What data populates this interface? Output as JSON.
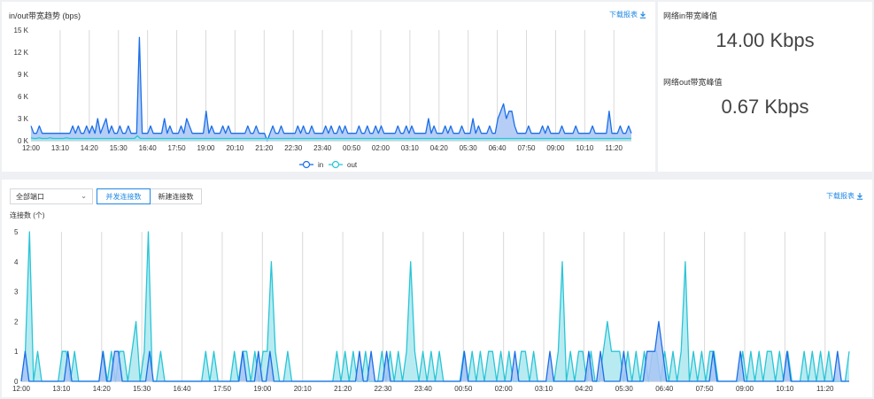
{
  "bandwidth_panel": {
    "title": "in/out带宽趋势 (bps)",
    "download_label": "下载报表",
    "legend": [
      {
        "name": "in",
        "color": "#1a6ee8"
      },
      {
        "name": "out",
        "color": "#29c5d6"
      }
    ]
  },
  "peak_panel": {
    "in_label": "网络in带宽峰值",
    "in_value": "14.00 Kbps",
    "out_label": "网络out带宽峰值",
    "out_value": "0.67 Kbps"
  },
  "connections_panel": {
    "port_select": {
      "value": "全部端口"
    },
    "tabs": [
      {
        "label": "并发连接数",
        "active": true
      },
      {
        "label": "新建连接数",
        "active": false
      }
    ],
    "download_label": "下载报表",
    "y_title": "连接数 (个)"
  },
  "colors": {
    "accent": "#1e88e5",
    "in_series": "#1a6ee8",
    "in_fill": "#a9c6f5",
    "out_series": "#29c5d6",
    "out_fill": "#a6e6ee",
    "grid": "#d9d9d9"
  },
  "chart_data": [
    {
      "type": "area",
      "title": "in/out带宽趋势 (bps)",
      "x_ticks": [
        "12:00",
        "13:10",
        "14:20",
        "15:30",
        "16:40",
        "17:50",
        "19:00",
        "20:10",
        "21:20",
        "22:30",
        "23:40",
        "00:50",
        "02:00",
        "03:10",
        "04:20",
        "05:30",
        "06:40",
        "07:50",
        "09:00",
        "10:10",
        "11:20"
      ],
      "y_ticks": [
        "0 K",
        "3 K",
        "6 K",
        "9 K",
        "12 K",
        "15 K"
      ],
      "ylim": [
        0,
        15
      ],
      "yunit": "K",
      "legend_position": "bottom",
      "grid": true,
      "series": [
        {
          "name": "in",
          "values": [
            2,
            1,
            1,
            2,
            1,
            1,
            1,
            1,
            1,
            1,
            1,
            1,
            1,
            1,
            1,
            2,
            1,
            2,
            1,
            1,
            2,
            1,
            2,
            1,
            3,
            1,
            2,
            3,
            1,
            2,
            1,
            1,
            2,
            1,
            1,
            2,
            1,
            1,
            1,
            14,
            1,
            1,
            1,
            2,
            1,
            1,
            1,
            1,
            3,
            1,
            2,
            1,
            1,
            1,
            2,
            1,
            3,
            2,
            1,
            1,
            1,
            1,
            1,
            4,
            1,
            2,
            1,
            1,
            1,
            2,
            1,
            2,
            1,
            1,
            1,
            1,
            1,
            1,
            2,
            1,
            1,
            2,
            1,
            1,
            1,
            0,
            1,
            2,
            1,
            1,
            2,
            1,
            1,
            1,
            1,
            1,
            2,
            1,
            2,
            1,
            1,
            2,
            1,
            1,
            1,
            1,
            2,
            1,
            2,
            1,
            1,
            2,
            1,
            2,
            1,
            1,
            1,
            1,
            2,
            1,
            1,
            2,
            1,
            1,
            2,
            1,
            2,
            1,
            1,
            1,
            1,
            1,
            2,
            1,
            1,
            2,
            1,
            2,
            1,
            1,
            1,
            1,
            1,
            3,
            1,
            2,
            1,
            1,
            1,
            2,
            1,
            2,
            1,
            1,
            1,
            2,
            1,
            1,
            1,
            3,
            1,
            2,
            1,
            1,
            1,
            2,
            1,
            1,
            3,
            4,
            5,
            3,
            4,
            4,
            2,
            1,
            1,
            1,
            1,
            2,
            1,
            1,
            1,
            1,
            2,
            1,
            2,
            1,
            1,
            1,
            1,
            2,
            1,
            1,
            1,
            1,
            2,
            1,
            1,
            1,
            1,
            1,
            2,
            1,
            1,
            1,
            1,
            1,
            4,
            1,
            1,
            1,
            2,
            1,
            1,
            2,
            1
          ]
        },
        {
          "name": "out",
          "values": [
            0.4,
            0.3,
            0.3,
            0.4,
            0.3,
            0.3,
            0.3,
            0.4,
            0.3,
            0.3,
            0.3,
            0.3,
            0.3,
            0.4,
            0.3,
            0.3,
            0.3,
            0.3,
            0.3,
            0.3,
            0.3,
            0.3,
            0.3,
            0.3,
            0.3,
            0.3,
            0.3,
            0.3,
            0.3,
            0.3,
            0.3,
            0.3,
            0.3,
            0.3,
            0.3,
            0.3,
            0.3,
            0.3,
            0.3,
            0.67,
            0.3,
            0.3,
            0.3,
            0.3,
            0.3,
            0.3,
            0.3,
            0.3,
            0.3,
            0.3,
            0.3,
            0.3,
            0.3,
            0.3,
            0.3,
            0.3,
            0.3,
            0.3,
            0.3,
            0.3,
            0.3,
            0.3,
            0.3,
            0.3,
            0.3,
            0.3,
            0.3,
            0.3,
            0.3,
            0.3,
            0.3,
            0.3,
            0.3,
            0.3,
            0.3,
            0.3,
            0.3,
            0.3,
            0.3,
            0.3,
            0.3,
            0.3,
            0.3,
            0.3,
            0.3,
            0.3,
            0.3,
            0.3,
            0.3,
            0.3,
            0.3,
            0.3,
            0.3,
            0.3,
            0.3,
            0.3,
            0.3,
            0.3,
            0.3,
            0.3,
            0.3,
            0.3,
            0.3,
            0.3,
            0.3,
            0.3,
            0.3,
            0.3,
            0.3,
            0.3,
            0.3,
            0.3,
            0.3,
            0.3,
            0.3,
            0.3,
            0.3,
            0.3,
            0.3,
            0.3,
            0.3,
            0.3,
            0.3,
            0.3,
            0.3,
            0.3,
            0.3,
            0.3,
            0.3,
            0.3,
            0.3,
            0.3,
            0.3,
            0.3,
            0.3,
            0.3,
            0.3,
            0.3,
            0.3,
            0.3,
            0.3,
            0.3,
            0.3,
            0.3,
            0.3,
            0.3,
            0.3,
            0.3,
            0.3,
            0.3,
            0.3,
            0.3,
            0.3,
            0.3,
            0.3,
            0.3,
            0.3,
            0.3,
            0.3,
            0.3,
            0.3,
            0.3,
            0.3,
            0.3,
            0.3,
            0.3,
            0.3,
            0.3,
            0.3,
            0.3,
            0.3,
            0.3,
            0.3,
            0.3,
            0.3,
            0.3,
            0.3,
            0.3,
            0.3,
            0.3,
            0.3,
            0.3,
            0.3,
            0.3,
            0.3,
            0.3,
            0.3,
            0.3,
            0.3,
            0.3,
            0.3,
            0.3,
            0.3,
            0.3,
            0.3,
            0.3,
            0.3,
            0.3,
            0.3,
            0.3,
            0.3,
            0.3,
            0.3,
            0.3,
            0.3,
            0.3,
            0.3,
            0.3,
            0.3,
            0.3,
            0.3,
            0.3,
            0.3,
            0.3,
            0.3,
            0.3,
            0.3,
            0.3,
            0.3,
            0.3,
            0.3
          ]
        }
      ]
    },
    {
      "type": "area",
      "title": "",
      "ylabel": "连接数 (个)",
      "x_ticks": [
        "12:00",
        "13:10",
        "14:20",
        "15:30",
        "16:40",
        "17:50",
        "19:00",
        "20:10",
        "21:20",
        "22:30",
        "23:40",
        "00:50",
        "02:00",
        "03:10",
        "04:20",
        "05:30",
        "06:40",
        "07:50",
        "09:00",
        "10:10",
        "11:20"
      ],
      "y_ticks": [
        "0",
        "1",
        "2",
        "3",
        "4",
        "5"
      ],
      "ylim": [
        0,
        5
      ],
      "grid": true,
      "series": [
        {
          "name": "in",
          "values": [
            0,
            1,
            0,
            0,
            0,
            0,
            0,
            0,
            0,
            0,
            0,
            0,
            1,
            0,
            0,
            0,
            0,
            0,
            0,
            0,
            0,
            1,
            0,
            0,
            1,
            1,
            0,
            0,
            0,
            0,
            0,
            0,
            0,
            1,
            0,
            0,
            0,
            0,
            0,
            0,
            0,
            0,
            0,
            0,
            0,
            0,
            0,
            0,
            0,
            0,
            0,
            0,
            0,
            0,
            0,
            0,
            0,
            1,
            0,
            0,
            0,
            1,
            0,
            0,
            1,
            0,
            0,
            0,
            0,
            0,
            0,
            0,
            0,
            0,
            0,
            0,
            0,
            0,
            0,
            0,
            0,
            0,
            0,
            0,
            0,
            0,
            0,
            1,
            0,
            0,
            1,
            0,
            0,
            0,
            1,
            0,
            0,
            0,
            0,
            0,
            0,
            0,
            0,
            0,
            0,
            0,
            0,
            0,
            0,
            0,
            0,
            0,
            0,
            0,
            1,
            0,
            0,
            0,
            0,
            0,
            0,
            0,
            0,
            0,
            0,
            0,
            0,
            1,
            0,
            0,
            0,
            0,
            0,
            0,
            0,
            0,
            1,
            0,
            0,
            0,
            0,
            0,
            0,
            0,
            0,
            0,
            1,
            0,
            0,
            1,
            0,
            0,
            0,
            0,
            0,
            1,
            0,
            0,
            0,
            0,
            0,
            1,
            1,
            1,
            2,
            1,
            0,
            0,
            0,
            0,
            0,
            0,
            0,
            0,
            0,
            0,
            0,
            0,
            1,
            0,
            0,
            0,
            0,
            0,
            0,
            1,
            0,
            0,
            0,
            0,
            0,
            0,
            0,
            0,
            0,
            0,
            0,
            1,
            0,
            0,
            0,
            0,
            0,
            0,
            0,
            0,
            0,
            0,
            0,
            0,
            1,
            0,
            0,
            0
          ]
        },
        {
          "name": "out",
          "values": [
            0,
            1,
            5,
            0,
            1,
            0,
            0,
            0,
            0,
            0,
            1,
            1,
            0,
            1,
            0,
            0,
            0,
            0,
            0,
            0,
            1,
            0,
            1,
            0,
            1,
            1,
            0,
            1,
            2,
            0,
            1,
            5,
            0,
            0,
            1,
            0,
            0,
            0,
            0,
            0,
            0,
            0,
            0,
            0,
            0,
            1,
            0,
            1,
            0,
            0,
            0,
            0,
            1,
            0,
            1,
            1,
            0,
            1,
            0,
            1,
            1,
            4,
            1,
            0,
            0,
            1,
            0,
            0,
            0,
            0,
            0,
            0,
            0,
            0,
            0,
            0,
            0,
            1,
            0,
            1,
            0,
            1,
            0,
            0,
            1,
            0,
            0,
            0,
            1,
            0,
            1,
            0,
            1,
            0,
            1,
            4,
            1,
            0,
            1,
            0,
            1,
            0,
            1,
            0,
            0,
            0,
            0,
            0,
            1,
            0,
            1,
            0,
            1,
            0,
            1,
            1,
            0,
            1,
            0,
            1,
            0,
            0,
            1,
            1,
            0,
            1,
            0,
            0,
            0,
            0,
            0,
            1,
            4,
            0,
            1,
            0,
            1,
            1,
            0,
            1,
            0,
            0,
            1,
            2,
            1,
            1,
            1,
            0,
            1,
            0,
            1,
            0,
            1,
            0,
            1,
            1,
            0,
            1,
            0,
            1,
            0,
            1,
            4,
            0,
            1,
            0,
            1,
            0,
            1,
            1,
            0,
            0,
            0,
            0,
            0,
            0,
            1,
            0,
            1,
            0,
            1,
            0,
            1,
            1,
            0,
            1,
            0,
            1,
            0,
            0,
            0,
            1,
            0,
            1,
            0,
            1,
            0,
            1,
            0,
            0,
            0,
            0,
            1
          ]
        }
      ]
    }
  ]
}
